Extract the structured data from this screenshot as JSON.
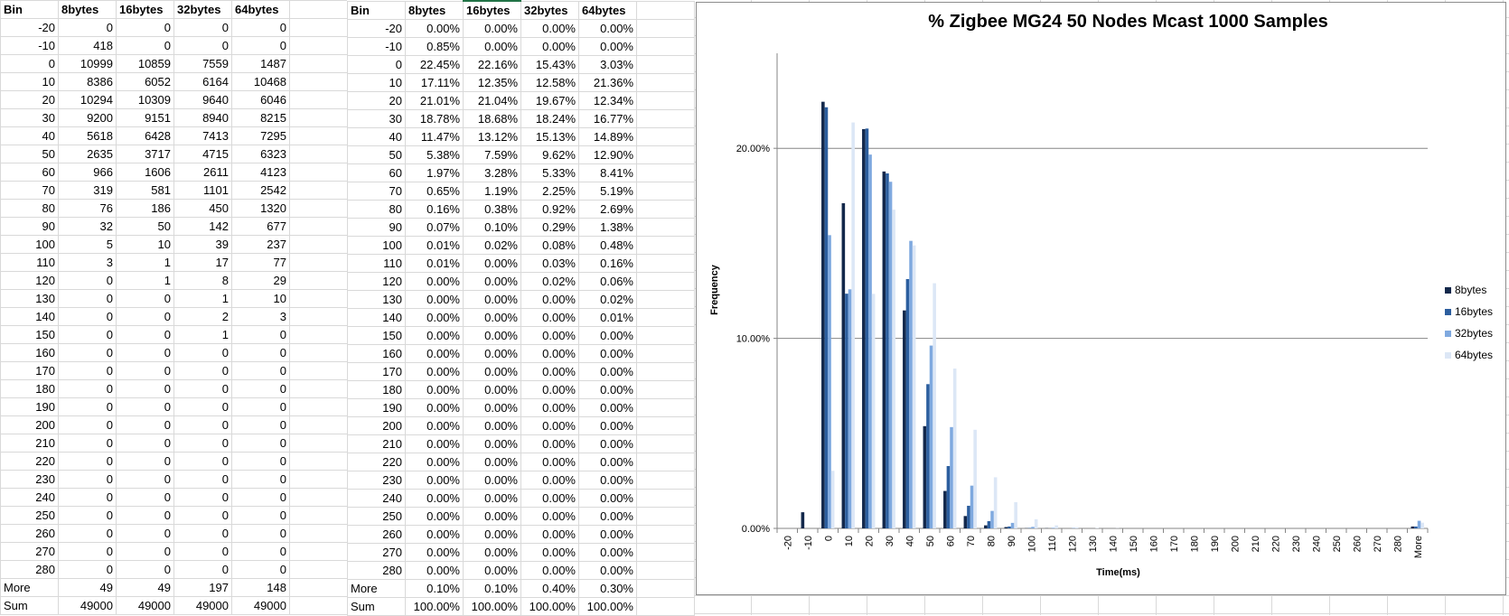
{
  "counts_table": {
    "headers": [
      "Bin",
      "8bytes",
      "16bytes",
      "32bytes",
      "64bytes"
    ],
    "rows": [
      [
        "-20",
        "0",
        "0",
        "0",
        "0"
      ],
      [
        "-10",
        "418",
        "0",
        "0",
        "0"
      ],
      [
        "0",
        "10999",
        "10859",
        "7559",
        "1487"
      ],
      [
        "10",
        "8386",
        "6052",
        "6164",
        "10468"
      ],
      [
        "20",
        "10294",
        "10309",
        "9640",
        "6046"
      ],
      [
        "30",
        "9200",
        "9151",
        "8940",
        "8215"
      ],
      [
        "40",
        "5618",
        "6428",
        "7413",
        "7295"
      ],
      [
        "50",
        "2635",
        "3717",
        "4715",
        "6323"
      ],
      [
        "60",
        "966",
        "1606",
        "2611",
        "4123"
      ],
      [
        "70",
        "319",
        "581",
        "1101",
        "2542"
      ],
      [
        "80",
        "76",
        "186",
        "450",
        "1320"
      ],
      [
        "90",
        "32",
        "50",
        "142",
        "677"
      ],
      [
        "100",
        "5",
        "10",
        "39",
        "237"
      ],
      [
        "110",
        "3",
        "1",
        "17",
        "77"
      ],
      [
        "120",
        "0",
        "1",
        "8",
        "29"
      ],
      [
        "130",
        "0",
        "0",
        "1",
        "10"
      ],
      [
        "140",
        "0",
        "0",
        "2",
        "3"
      ],
      [
        "150",
        "0",
        "0",
        "1",
        "0"
      ],
      [
        "160",
        "0",
        "0",
        "0",
        "0"
      ],
      [
        "170",
        "0",
        "0",
        "0",
        "0"
      ],
      [
        "180",
        "0",
        "0",
        "0",
        "0"
      ],
      [
        "190",
        "0",
        "0",
        "0",
        "0"
      ],
      [
        "200",
        "0",
        "0",
        "0",
        "0"
      ],
      [
        "210",
        "0",
        "0",
        "0",
        "0"
      ],
      [
        "220",
        "0",
        "0",
        "0",
        "0"
      ],
      [
        "230",
        "0",
        "0",
        "0",
        "0"
      ],
      [
        "240",
        "0",
        "0",
        "0",
        "0"
      ],
      [
        "250",
        "0",
        "0",
        "0",
        "0"
      ],
      [
        "260",
        "0",
        "0",
        "0",
        "0"
      ],
      [
        "270",
        "0",
        "0",
        "0",
        "0"
      ],
      [
        "280",
        "0",
        "0",
        "0",
        "0"
      ],
      [
        "More",
        "49",
        "49",
        "197",
        "148"
      ],
      [
        "Sum",
        "49000",
        "49000",
        "49000",
        "49000"
      ]
    ]
  },
  "percent_table": {
    "headers": [
      "Bin",
      "8bytes",
      "16bytes",
      "32bytes",
      "64bytes"
    ],
    "rows": [
      [
        "-20",
        "0.00%",
        "0.00%",
        "0.00%",
        "0.00%"
      ],
      [
        "-10",
        "0.85%",
        "0.00%",
        "0.00%",
        "0.00%"
      ],
      [
        "0",
        "22.45%",
        "22.16%",
        "15.43%",
        "3.03%"
      ],
      [
        "10",
        "17.11%",
        "12.35%",
        "12.58%",
        "21.36%"
      ],
      [
        "20",
        "21.01%",
        "21.04%",
        "19.67%",
        "12.34%"
      ],
      [
        "30",
        "18.78%",
        "18.68%",
        "18.24%",
        "16.77%"
      ],
      [
        "40",
        "11.47%",
        "13.12%",
        "15.13%",
        "14.89%"
      ],
      [
        "50",
        "5.38%",
        "7.59%",
        "9.62%",
        "12.90%"
      ],
      [
        "60",
        "1.97%",
        "3.28%",
        "5.33%",
        "8.41%"
      ],
      [
        "70",
        "0.65%",
        "1.19%",
        "2.25%",
        "5.19%"
      ],
      [
        "80",
        "0.16%",
        "0.38%",
        "0.92%",
        "2.69%"
      ],
      [
        "90",
        "0.07%",
        "0.10%",
        "0.29%",
        "1.38%"
      ],
      [
        "100",
        "0.01%",
        "0.02%",
        "0.08%",
        "0.48%"
      ],
      [
        "110",
        "0.01%",
        "0.00%",
        "0.03%",
        "0.16%"
      ],
      [
        "120",
        "0.00%",
        "0.00%",
        "0.02%",
        "0.06%"
      ],
      [
        "130",
        "0.00%",
        "0.00%",
        "0.00%",
        "0.02%"
      ],
      [
        "140",
        "0.00%",
        "0.00%",
        "0.00%",
        "0.01%"
      ],
      [
        "150",
        "0.00%",
        "0.00%",
        "0.00%",
        "0.00%"
      ],
      [
        "160",
        "0.00%",
        "0.00%",
        "0.00%",
        "0.00%"
      ],
      [
        "170",
        "0.00%",
        "0.00%",
        "0.00%",
        "0.00%"
      ],
      [
        "180",
        "0.00%",
        "0.00%",
        "0.00%",
        "0.00%"
      ],
      [
        "190",
        "0.00%",
        "0.00%",
        "0.00%",
        "0.00%"
      ],
      [
        "200",
        "0.00%",
        "0.00%",
        "0.00%",
        "0.00%"
      ],
      [
        "210",
        "0.00%",
        "0.00%",
        "0.00%",
        "0.00%"
      ],
      [
        "220",
        "0.00%",
        "0.00%",
        "0.00%",
        "0.00%"
      ],
      [
        "230",
        "0.00%",
        "0.00%",
        "0.00%",
        "0.00%"
      ],
      [
        "240",
        "0.00%",
        "0.00%",
        "0.00%",
        "0.00%"
      ],
      [
        "250",
        "0.00%",
        "0.00%",
        "0.00%",
        "0.00%"
      ],
      [
        "260",
        "0.00%",
        "0.00%",
        "0.00%",
        "0.00%"
      ],
      [
        "270",
        "0.00%",
        "0.00%",
        "0.00%",
        "0.00%"
      ],
      [
        "280",
        "0.00%",
        "0.00%",
        "0.00%",
        "0.00%"
      ],
      [
        "More",
        "0.10%",
        "0.10%",
        "0.40%",
        "0.30%"
      ],
      [
        "Sum",
        "100.00%",
        "100.00%",
        "100.00%",
        "100.00%"
      ]
    ]
  },
  "chart_data": {
    "type": "bar",
    "title": "% Zigbee MG24 50 Nodes Mcast 1000 Samples",
    "xlabel": "Time(ms)",
    "ylabel": "Frequency",
    "ylim": [
      0,
      25
    ],
    "yticks": [
      0,
      10,
      20
    ],
    "ytick_labels": [
      "0.00%",
      "10.00%",
      "20.00%"
    ],
    "grid": true,
    "legend_position": "right",
    "categories": [
      "-20",
      "-10",
      "0",
      "10",
      "20",
      "30",
      "40",
      "50",
      "60",
      "70",
      "80",
      "90",
      "100",
      "110",
      "120",
      "130",
      "140",
      "150",
      "160",
      "170",
      "180",
      "190",
      "200",
      "210",
      "220",
      "230",
      "240",
      "250",
      "260",
      "270",
      "280",
      "More"
    ],
    "series": [
      {
        "name": "8bytes",
        "color": "#13284b",
        "values": [
          0,
          0.85,
          22.45,
          17.11,
          21.01,
          18.78,
          11.47,
          5.38,
          1.97,
          0.65,
          0.16,
          0.07,
          0.01,
          0.01,
          0,
          0,
          0,
          0,
          0,
          0,
          0,
          0,
          0,
          0,
          0,
          0,
          0,
          0,
          0,
          0,
          0,
          0.1
        ]
      },
      {
        "name": "16bytes",
        "color": "#2c5e9e",
        "values": [
          0,
          0,
          22.16,
          12.35,
          21.04,
          18.68,
          13.12,
          7.59,
          3.28,
          1.19,
          0.38,
          0.1,
          0.02,
          0,
          0,
          0,
          0,
          0,
          0,
          0,
          0,
          0,
          0,
          0,
          0,
          0,
          0,
          0,
          0,
          0,
          0,
          0.1
        ]
      },
      {
        "name": "32bytes",
        "color": "#7fa9df",
        "values": [
          0,
          0,
          15.43,
          12.58,
          19.67,
          18.24,
          15.13,
          9.62,
          5.33,
          2.25,
          0.92,
          0.29,
          0.08,
          0.03,
          0.02,
          0,
          0,
          0,
          0,
          0,
          0,
          0,
          0,
          0,
          0,
          0,
          0,
          0,
          0,
          0,
          0,
          0.4
        ]
      },
      {
        "name": "64bytes",
        "color": "#dce7f6",
        "values": [
          0,
          0,
          3.03,
          21.36,
          12.34,
          16.77,
          14.89,
          12.9,
          8.41,
          5.19,
          2.69,
          1.38,
          0.48,
          0.16,
          0.06,
          0.02,
          0.01,
          0,
          0,
          0,
          0,
          0,
          0,
          0,
          0,
          0,
          0,
          0,
          0,
          0,
          0,
          0.3
        ]
      }
    ]
  }
}
